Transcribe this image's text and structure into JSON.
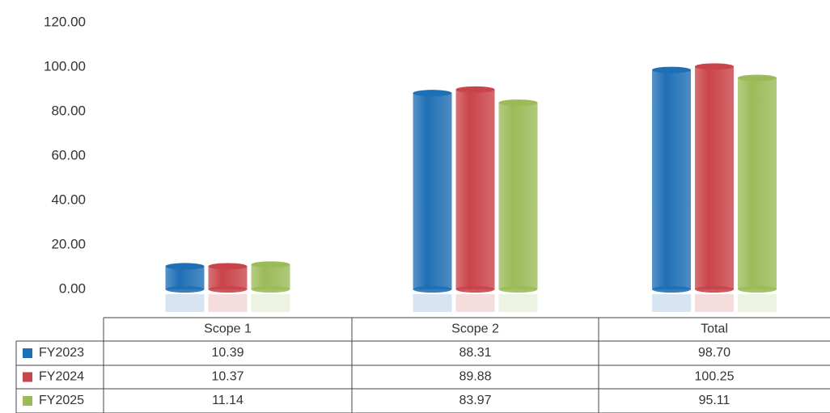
{
  "chart_data": {
    "type": "bar",
    "categories": [
      "Scope 1",
      "Scope 2",
      "Total"
    ],
    "series": [
      {
        "name": "FY2023",
        "color": "#1f6fb5",
        "values": [
          10.39,
          88.31,
          98.7
        ],
        "value_labels": [
          "10.39",
          "88.31",
          "98.70"
        ]
      },
      {
        "name": "FY2024",
        "color": "#c9444a",
        "values": [
          10.37,
          89.88,
          100.25
        ],
        "value_labels": [
          "10.37",
          "89.88",
          "100.25"
        ]
      },
      {
        "name": "FY2025",
        "color": "#9bbb59",
        "values": [
          11.14,
          83.97,
          95.11
        ],
        "value_labels": [
          "11.14",
          "83.97",
          "95.11"
        ]
      }
    ],
    "ylim": [
      0,
      120
    ],
    "yticks": [
      {
        "value": 0,
        "label": "0.00"
      },
      {
        "value": 20,
        "label": "20.00"
      },
      {
        "value": 40,
        "label": "40.00"
      },
      {
        "value": 60,
        "label": "60.00"
      },
      {
        "value": 80,
        "label": "80.00"
      },
      {
        "value": 100,
        "label": "100.00"
      },
      {
        "value": 120,
        "label": "120.00"
      }
    ]
  }
}
